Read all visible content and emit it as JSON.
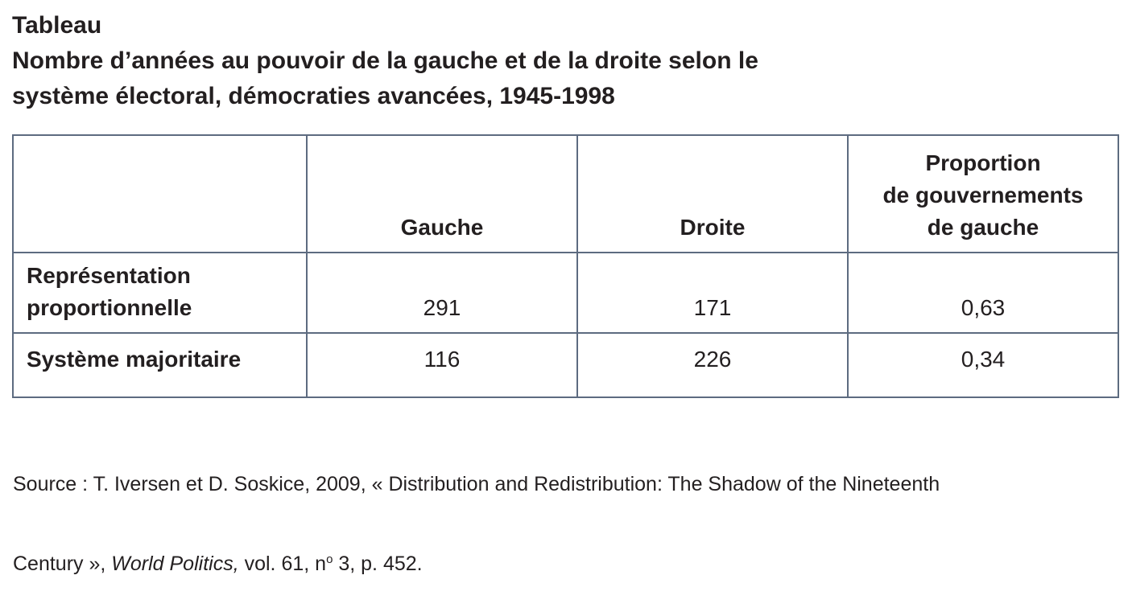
{
  "header": {
    "label": "Tableau",
    "title": [
      "Nombre d’années au pouvoir de la gauche et de la droite selon le",
      "système électoral, démocraties avancées, 1945-1998"
    ]
  },
  "table": {
    "columns": [
      [
        "Gauche"
      ],
      [
        "Droite"
      ],
      [
        "Proportion",
        "de gouvernements",
        "de gauche"
      ]
    ],
    "rows": [
      {
        "label": [
          "Représentation",
          "proportionnelle"
        ],
        "cells": [
          291,
          171,
          "0,63"
        ]
      },
      {
        "label": [
          "Système majoritaire"
        ],
        "cells": [
          116,
          226,
          "0,34"
        ]
      }
    ]
  },
  "source": {
    "line1": "Source : T. Iversen et D. Soskice, 2009, « Distribution and Redistribution: The Shadow of the Nineteenth",
    "line2": [
      "Century », ",
      "World Politics,",
      " vol. 61, n",
      "o",
      " 3, p. 452."
    ]
  }
}
